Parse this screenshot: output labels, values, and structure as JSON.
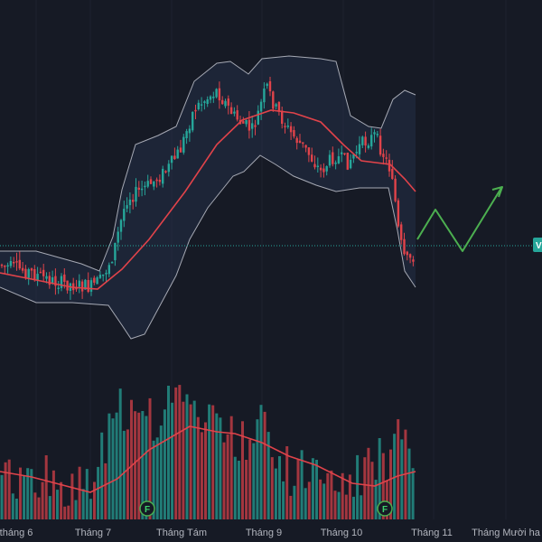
{
  "chart_data": {
    "type": "candlestick",
    "x_ticks": [
      "tháng 6",
      "Tháng 7",
      "Tháng Tám",
      "Tháng 9",
      "Tháng 10",
      "Tháng 11",
      "Tháng Mười ha"
    ],
    "current_price_tag": "V",
    "event_markers": [
      "F",
      "F"
    ],
    "colors": {
      "up": "#26a69a",
      "down": "#ef5350",
      "ma": "#e0434a",
      "band": "#c9ccd6",
      "band_fill": "#243047",
      "forecast": "#4caf50",
      "price_line": "#26a69a",
      "grid": "#1f2330"
    },
    "grid": true,
    "overlays": [
      "bollinger_bands",
      "moving_average",
      "forecast_path"
    ],
    "lower_panel": "volume_with_moving_average"
  }
}
